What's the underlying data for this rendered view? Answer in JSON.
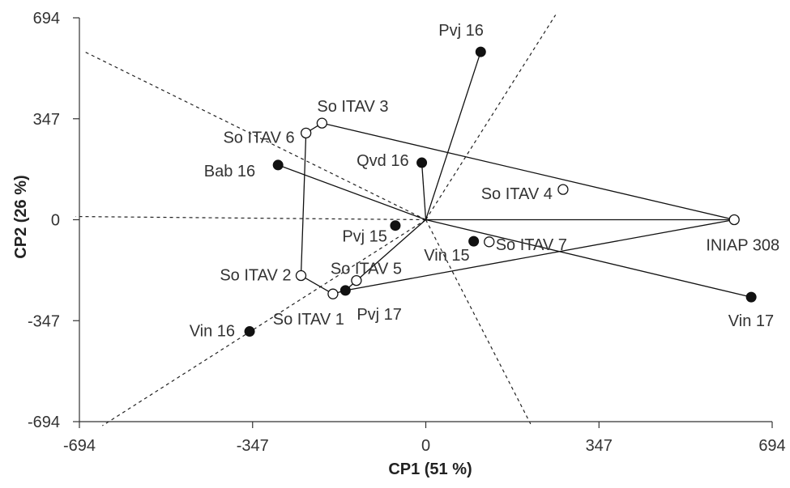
{
  "chart_data": {
    "type": "scatter",
    "title": "",
    "xlabel": "CP1 (51 %)",
    "ylabel": "CP2 (26 %)",
    "xlim": [
      -694,
      694
    ],
    "ylim": [
      -694,
      694
    ],
    "xticks": [
      -694,
      -347,
      0,
      347,
      694
    ],
    "yticks": [
      -694,
      -347,
      0,
      347,
      694
    ],
    "xtick_labels": [
      "-694",
      "-347",
      "0",
      "347",
      "694"
    ],
    "ytick_labels": [
      "-694",
      "-347",
      "0",
      "347",
      "694"
    ],
    "origin": [
      0,
      0
    ],
    "points": [
      {
        "id": "pvj16",
        "label": "Pvj 16",
        "x": 110,
        "y": 577,
        "marker": "filled",
        "label_anchor": "start",
        "label_dx": -52,
        "label_dy": -20
      },
      {
        "id": "qvd16",
        "label": "Qvd 16",
        "x": -8,
        "y": 196,
        "marker": "filled",
        "label_anchor": "end",
        "label_dx": -16,
        "label_dy": 4
      },
      {
        "id": "bab16",
        "label": "Bab 16",
        "x": -296,
        "y": 188,
        "marker": "filled",
        "label_anchor": "end",
        "label_dx": -28,
        "label_dy": 14
      },
      {
        "id": "pvj15",
        "label": "Pvj 15",
        "x": -61,
        "y": -20,
        "marker": "filled",
        "label_anchor": "end",
        "label_dx": -10,
        "label_dy": 20
      },
      {
        "id": "vin15",
        "label": "Vin 15",
        "x": 96,
        "y": -74,
        "marker": "filled",
        "label_anchor": "end",
        "label_dx": -5,
        "label_dy": 24
      },
      {
        "id": "pvj17",
        "label": "Pvj 17",
        "x": -161,
        "y": -243,
        "marker": "filled",
        "label_anchor": "start",
        "label_dx": 14,
        "label_dy": 36
      },
      {
        "id": "vin16",
        "label": "Vin 16",
        "x": -353,
        "y": -384,
        "marker": "filled",
        "label_anchor": "end",
        "label_dx": -18,
        "label_dy": 6
      },
      {
        "id": "vin17",
        "label": "Vin 17",
        "x": 652,
        "y": -266,
        "marker": "filled",
        "label_anchor": "end",
        "label_dx": 28,
        "label_dy": 36
      },
      {
        "id": "soitav3",
        "label": "So ITAV 3",
        "x": -208,
        "y": 332,
        "marker": "open",
        "label_anchor": "start",
        "label_dx": -6,
        "label_dy": -14
      },
      {
        "id": "soitav6",
        "label": "So ITAV 6",
        "x": -240,
        "y": 298,
        "marker": "open",
        "label_anchor": "end",
        "label_dx": -14,
        "label_dy": 12
      },
      {
        "id": "soitav4",
        "label": "So ITAV 4",
        "x": 275,
        "y": 104,
        "marker": "open",
        "label_anchor": "end",
        "label_dx": -13,
        "label_dy": 12
      },
      {
        "id": "iniap308",
        "label": "INIAP 308",
        "x": 618,
        "y": 0,
        "marker": "open",
        "label_anchor": "end",
        "label_dx": 56,
        "label_dy": 38
      },
      {
        "id": "soitav7",
        "label": "So ITAV 7",
        "x": 127,
        "y": -76,
        "marker": "open",
        "label_anchor": "start",
        "label_dx": 8,
        "label_dy": 10
      },
      {
        "id": "soitav5",
        "label": "So ITAV 5",
        "x": -139,
        "y": -209,
        "marker": "open",
        "label_anchor": "start",
        "label_dx": -32,
        "label_dy": -8
      },
      {
        "id": "soitav2",
        "label": "So ITAV 2",
        "x": -250,
        "y": -192,
        "marker": "open",
        "label_anchor": "end",
        "label_dx": -12,
        "label_dy": 6
      },
      {
        "id": "soitav1",
        "label": "So ITAV 1",
        "x": -186,
        "y": -255,
        "marker": "open",
        "label_anchor": "end",
        "label_dx": 14,
        "label_dy": 38
      }
    ],
    "hull": [
      "soitav3",
      "iniap308",
      "pvj17",
      "soitav1",
      "soitav2",
      "soitav6"
    ],
    "vertex_rays": [
      "pvj16",
      "qvd16",
      "bab16",
      "iniap308",
      "vin17",
      "pvj17"
    ],
    "sector_lines": [
      {
        "from": [
          0,
          0
        ],
        "to": [
          260,
          704
        ]
      },
      {
        "from": [
          0,
          0
        ],
        "to": [
          -682,
          576
        ]
      },
      {
        "from": [
          0,
          0
        ],
        "to": [
          -702,
          11
        ]
      },
      {
        "from": [
          0,
          0
        ],
        "to": [
          -648,
          -708
        ]
      },
      {
        "from": [
          0,
          0
        ],
        "to": [
          210,
          -702
        ]
      }
    ]
  }
}
